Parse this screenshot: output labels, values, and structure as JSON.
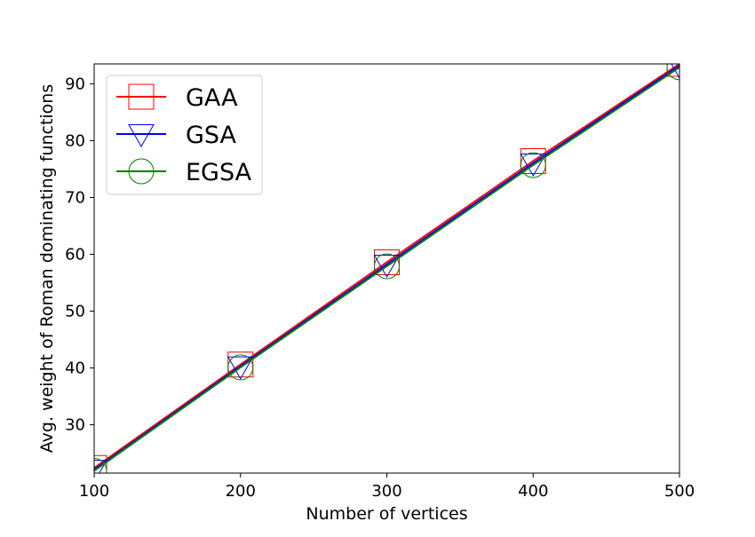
{
  "chart_data": {
    "type": "line",
    "title": "",
    "xlabel": "Number of vertices",
    "ylabel": "Avg. weight of Roman dominating functions",
    "xlim": [
      100,
      500
    ],
    "ylim": [
      21.5,
      93.5
    ],
    "x_ticks": [
      100,
      200,
      300,
      400,
      500
    ],
    "y_ticks": [
      30,
      40,
      50,
      60,
      70,
      80,
      90
    ],
    "x_tick_labels": [
      "100",
      "200",
      "300",
      "400",
      "500"
    ],
    "y_tick_labels": [
      "30",
      "40",
      "50",
      "60",
      "70",
      "80",
      "90"
    ],
    "grid": false,
    "legend_position": "top-left",
    "x": [
      100,
      200,
      300,
      400,
      500
    ],
    "series": [
      {
        "name": "GAA",
        "color": "#ff0000",
        "marker": "square",
        "values": [
          22.4,
          40.6,
          58.6,
          76.4,
          93.5
        ]
      },
      {
        "name": "GSA",
        "color": "#0000ff",
        "marker": "triangle-down",
        "values": [
          22.1,
          40.3,
          58.2,
          76.0,
          93.2
        ]
      },
      {
        "name": "EGSA",
        "color": "#008000",
        "marker": "circle",
        "values": [
          21.9,
          40.1,
          57.9,
          75.7,
          92.9
        ]
      }
    ]
  }
}
